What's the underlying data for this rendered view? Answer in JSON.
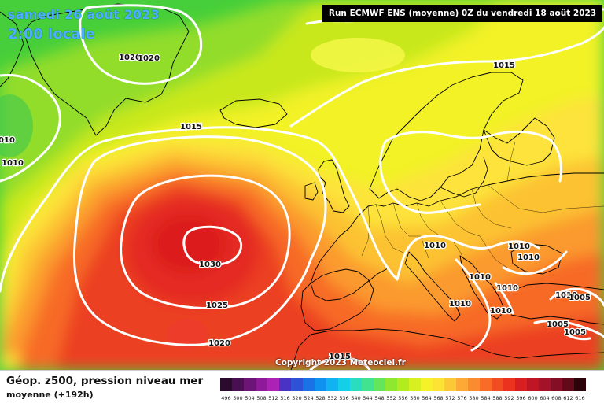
{
  "header": {
    "date_line": "samedi 26 août 2023",
    "time_line": "2:00 locale",
    "run_info": "Run ECMWF ENS (moyenne) 0Z du vendredi 18 août 2023"
  },
  "footer": {
    "title": "Géop. z500, pression niveau mer",
    "subtitle": "moyenne   (+192h)"
  },
  "copyright": "Copyright 2023 Meteociel.fr",
  "isobars": [
    {
      "value": "1030"
    },
    {
      "value": "1025"
    },
    {
      "value": "1020"
    },
    {
      "value": "1020"
    },
    {
      "value": "1020"
    },
    {
      "value": "1015"
    },
    {
      "value": "1015"
    },
    {
      "value": "1015"
    },
    {
      "value": "1015"
    },
    {
      "value": "1010"
    },
    {
      "value": "1010"
    },
    {
      "value": "1010"
    },
    {
      "value": "1010"
    },
    {
      "value": "1010"
    },
    {
      "value": "1010"
    },
    {
      "value": "1010"
    },
    {
      "value": "1010"
    },
    {
      "value": "1010"
    },
    {
      "value": "1010"
    },
    {
      "value": "1005"
    },
    {
      "value": "1005"
    },
    {
      "value": "1005"
    }
  ],
  "legend": {
    "labels": [
      "496",
      "500",
      "504",
      "508",
      "512",
      "516",
      "520",
      "524",
      "528",
      "532",
      "536",
      "540",
      "544",
      "548",
      "552",
      "556",
      "560",
      "564",
      "568",
      "572",
      "576",
      "580",
      "584",
      "588",
      "592",
      "596",
      "600",
      "604",
      "608",
      "612",
      "616"
    ],
    "colors": [
      "#2b0a2e",
      "#4a0e52",
      "#6d1477",
      "#8e1a99",
      "#ac22b5",
      "#4a33c4",
      "#2e52d6",
      "#1a72e6",
      "#0f92ef",
      "#10b2f2",
      "#13cfe8",
      "#2adcc0",
      "#42e38e",
      "#64e55c",
      "#8ee82f",
      "#b2ec1e",
      "#d8f01f",
      "#f5f22a",
      "#fde333",
      "#fdc836",
      "#fcaa35",
      "#fb8b2f",
      "#f86c28",
      "#f24d22",
      "#ea321f",
      "#d81e21",
      "#bf1626",
      "#a31228",
      "#850e24",
      "#620a1a",
      "#2a0408"
    ]
  }
}
